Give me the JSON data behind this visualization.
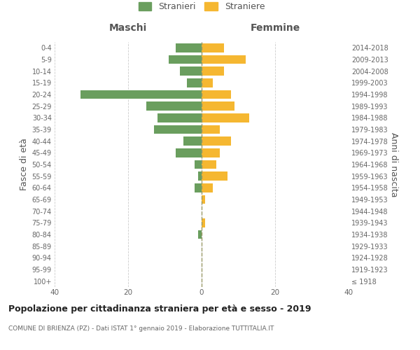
{
  "age_groups": [
    "100+",
    "95-99",
    "90-94",
    "85-89",
    "80-84",
    "75-79",
    "70-74",
    "65-69",
    "60-64",
    "55-59",
    "50-54",
    "45-49",
    "40-44",
    "35-39",
    "30-34",
    "25-29",
    "20-24",
    "15-19",
    "10-14",
    "5-9",
    "0-4"
  ],
  "birth_years": [
    "≤ 1918",
    "1919-1923",
    "1924-1928",
    "1929-1933",
    "1934-1938",
    "1939-1943",
    "1944-1948",
    "1949-1953",
    "1954-1958",
    "1959-1963",
    "1964-1968",
    "1969-1973",
    "1974-1978",
    "1979-1983",
    "1984-1988",
    "1989-1993",
    "1994-1998",
    "1999-2003",
    "2004-2008",
    "2009-2013",
    "2014-2018"
  ],
  "maschi": [
    0,
    0,
    0,
    0,
    1,
    0,
    0,
    0,
    2,
    1,
    2,
    7,
    5,
    13,
    12,
    15,
    33,
    4,
    6,
    9,
    7
  ],
  "femmine": [
    0,
    0,
    0,
    0,
    0,
    1,
    0,
    1,
    3,
    7,
    4,
    5,
    8,
    5,
    13,
    9,
    8,
    3,
    6,
    12,
    6
  ],
  "color_maschi": "#6a9e5e",
  "color_femmine": "#f5b731",
  "title": "Popolazione per cittadinanza straniera per età e sesso - 2019",
  "subtitle": "COMUNE DI BRIENZA (PZ) - Dati ISTAT 1° gennaio 2019 - Elaborazione TUTTITALIA.IT",
  "ylabel_left": "Fasce di età",
  "ylabel_right": "Anni di nascita",
  "xlabel_maschi": "Maschi",
  "xlabel_femmine": "Femmine",
  "legend_maschi": "Stranieri",
  "legend_femmine": "Straniere",
  "xlim": 40,
  "background_color": "#ffffff"
}
